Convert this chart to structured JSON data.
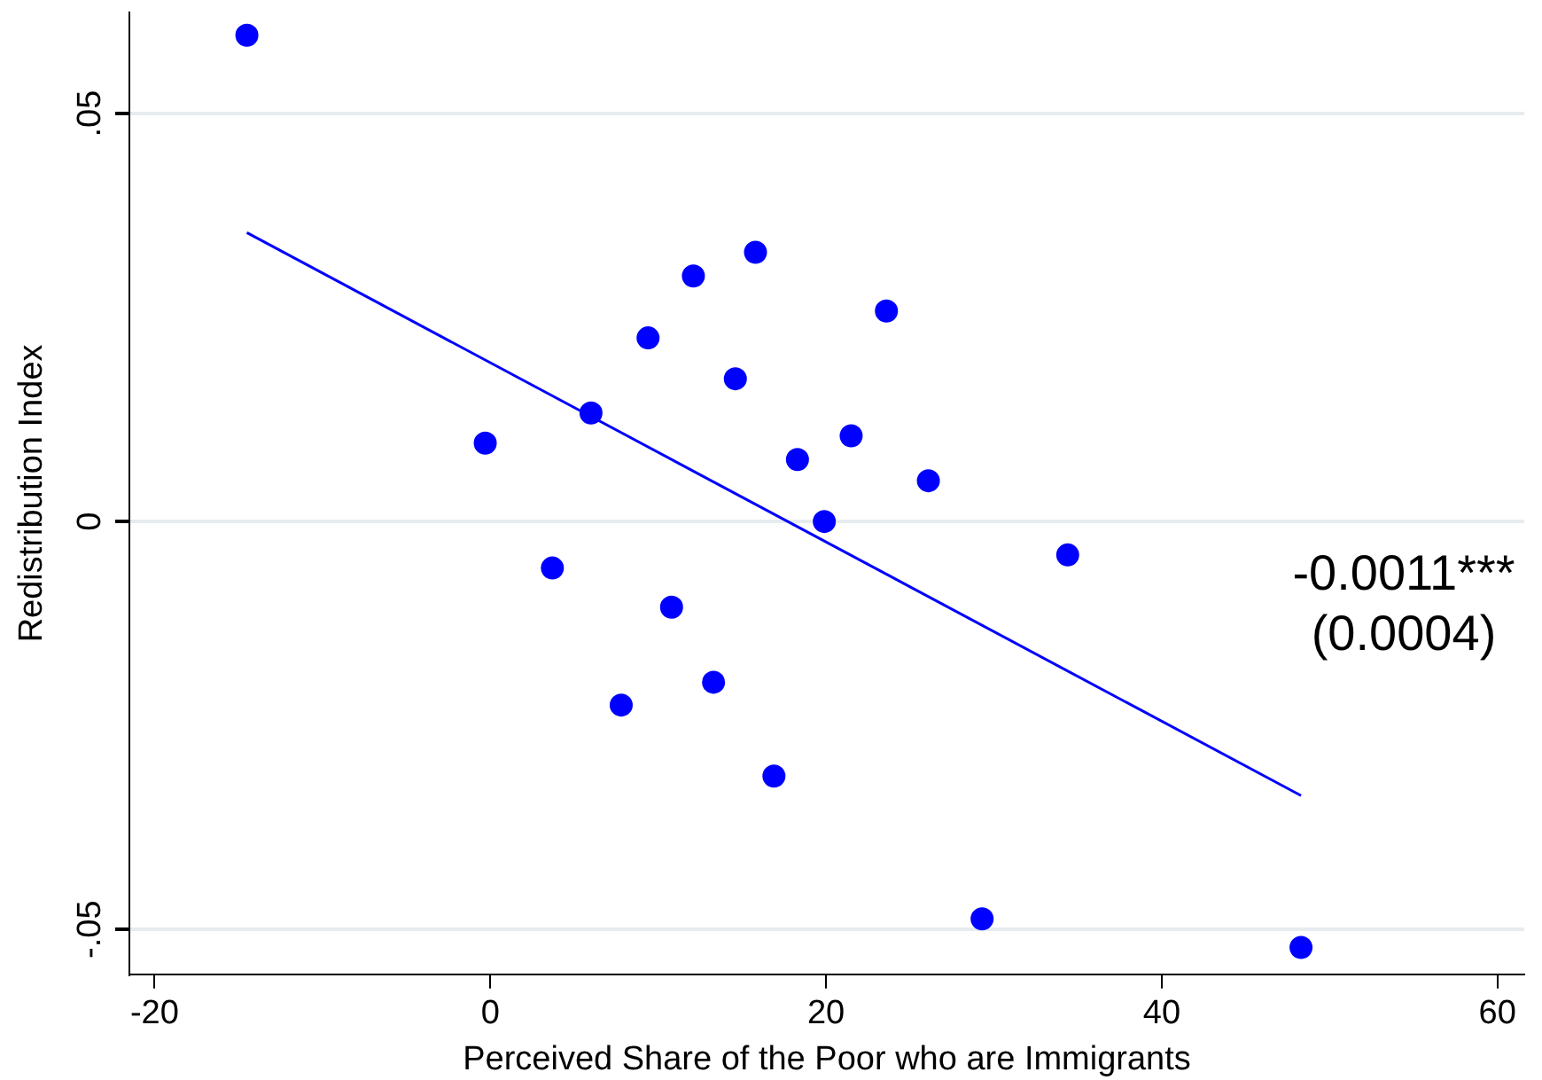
{
  "chart_data": {
    "type": "scatter",
    "xlabel": "Perceived Share of the Poor who are Immigrants",
    "ylabel": "Redistribution Index",
    "xlim": [
      -21.5,
      61.6
    ],
    "ylim": [
      -0.0555,
      0.0624
    ],
    "xticks": [
      -20,
      0,
      20,
      40,
      60
    ],
    "yticks": [
      {
        "value": -0.05,
        "label": "-.05"
      },
      {
        "value": 0,
        "label": "0"
      },
      {
        "value": 0.05,
        "label": ".05"
      }
    ],
    "grid": "y",
    "legend": false,
    "marker": "circle",
    "annotations": [
      "-0.0011***",
      "(0.0004)"
    ],
    "series": [
      {
        "color": "#0000ff",
        "x": [
          -14.5,
          15.8,
          12.1,
          23.6,
          9.4,
          14.6,
          6.0,
          -0.3,
          21.5,
          18.3,
          26.1,
          19.9,
          34.4,
          3.7,
          10.8,
          13.3,
          7.8,
          16.9,
          29.3,
          48.3
        ],
        "values": [
          0.0596,
          0.033,
          0.0301,
          0.0258,
          0.0225,
          0.0175,
          0.0133,
          0.0096,
          0.0105,
          0.0076,
          0.005,
          0.0,
          -0.0041,
          -0.0057,
          -0.0105,
          -0.0197,
          -0.0225,
          -0.0312,
          -0.0487,
          -0.0522
        ]
      },
      {
        "type": "line",
        "color": "#0000ff",
        "line_style": "solid",
        "marker": "none",
        "x": [
          -14.5,
          48.3
        ],
        "values": [
          0.0354,
          -0.0336
        ]
      }
    ]
  }
}
